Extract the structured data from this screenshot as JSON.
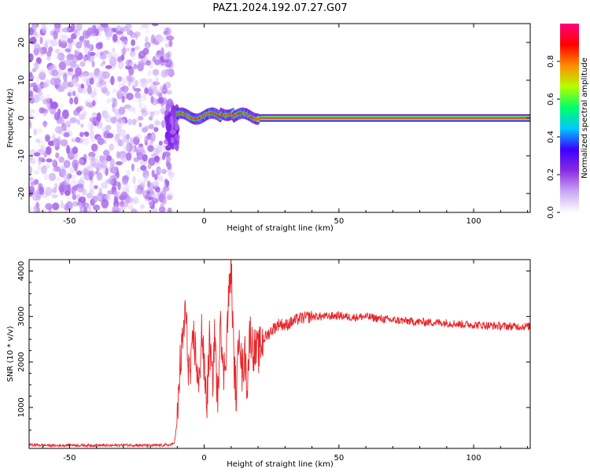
{
  "title": "PAZ1.2024.192.07.27.G07",
  "chart_data": [
    {
      "type": "heatmap",
      "xlabel": "Height of straight line (km)",
      "ylabel": "Frequency (Hz)",
      "xlim": [
        -65,
        121
      ],
      "ylim": [
        -25,
        25
      ],
      "xticks": [
        "-50",
        "0",
        "50",
        "100"
      ],
      "xtick_values": [
        -50,
        0,
        50,
        100
      ],
      "yticks": [
        "20",
        "10",
        "0",
        "-10",
        "-20"
      ],
      "ytick_values": [
        20,
        10,
        0,
        -10,
        -20
      ],
      "colorbar": {
        "label": "Normalized spectral amplitude",
        "range": [
          0,
          1
        ],
        "ticks": [
          "0.0",
          "0.2",
          "0.4",
          "0.6",
          "0.8"
        ],
        "tick_values": [
          0.0,
          0.2,
          0.4,
          0.6,
          0.8
        ],
        "colormap": [
          "#ffffff",
          "#c9a6f5",
          "#8a2be2",
          "#3b00ff",
          "#00c8ff",
          "#00ff66",
          "#b4ff00",
          "#ff8c00",
          "#ff0000",
          "#ff007f"
        ]
      },
      "regions": [
        {
          "x_range": [
            -65,
            -14
          ],
          "frequency_range": [
            -25,
            25
          ],
          "amplitude_range": [
            0.0,
            0.2
          ],
          "pattern": "scattered noise"
        },
        {
          "x_range": [
            -14,
            -10
          ],
          "frequency_range": [
            -8,
            3
          ],
          "amplitude_range": [
            0.1,
            0.3
          ],
          "pattern": "transition"
        },
        {
          "x_range": [
            -10,
            20
          ],
          "frequency_range": [
            -1,
            2
          ],
          "amplitude_range": [
            0.2,
            0.9
          ],
          "pattern": "wavy carrier"
        },
        {
          "x_range": [
            20,
            121
          ],
          "frequency_range": [
            -1,
            1
          ],
          "amplitude_range": [
            0.0,
            1.0
          ],
          "pattern": "steady carrier at 0 Hz"
        }
      ]
    },
    {
      "type": "line",
      "xlabel": "Height of straight line (km)",
      "ylabel": "SNR (10 * v/v)",
      "xlim": [
        -65,
        121
      ],
      "ylim": [
        100,
        4250
      ],
      "xticks": [
        "-50",
        "0",
        "50",
        "100"
      ],
      "xtick_values": [
        -50,
        0,
        50,
        100
      ],
      "yticks": [
        "4000",
        "3000",
        "2000",
        "1000"
      ],
      "ytick_values": [
        4000,
        3000,
        2000,
        1000
      ],
      "series": [
        {
          "color": "#e8262a",
          "x": [
            -65,
            -60,
            -55,
            -50,
            -45,
            -40,
            -35,
            -30,
            -25,
            -20,
            -15,
            -12,
            -11,
            -10,
            -9,
            -8,
            -7,
            -6,
            -5,
            -4,
            -3,
            -2,
            -1,
            0,
            1,
            2,
            3,
            4,
            5,
            6,
            7,
            8,
            9,
            10,
            11,
            12,
            13,
            14,
            15,
            16,
            17,
            18,
            20,
            22,
            25,
            28,
            30,
            35,
            40,
            45,
            50,
            55,
            60,
            65,
            70,
            75,
            80,
            85,
            90,
            95,
            100,
            105,
            110,
            115,
            121
          ],
          "y": [
            180,
            170,
            160,
            175,
            165,
            170,
            160,
            175,
            170,
            165,
            170,
            180,
            250,
            700,
            1900,
            2400,
            3200,
            2000,
            1700,
            2600,
            2100,
            1300,
            2800,
            1800,
            1100,
            2500,
            1500,
            2700,
            900,
            3300,
            1600,
            2200,
            3300,
            4150,
            2000,
            1200,
            3000,
            1700,
            2200,
            1500,
            2700,
            2300,
            2200,
            2500,
            2700,
            2850,
            2800,
            2950,
            3000,
            3000,
            3020,
            2980,
            3000,
            2950,
            2920,
            2900,
            2880,
            2870,
            2860,
            2830,
            2820,
            2800,
            2790,
            2780,
            2780
          ]
        }
      ]
    }
  ]
}
